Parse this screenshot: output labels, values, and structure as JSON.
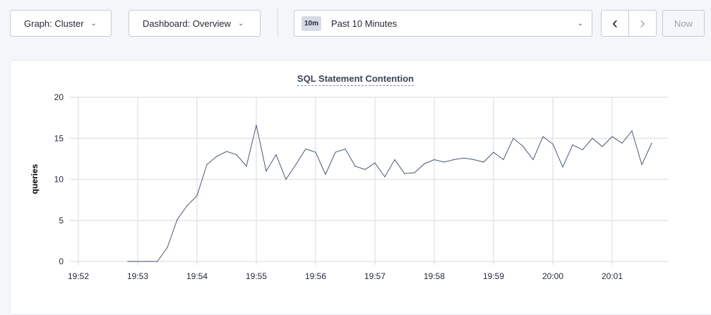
{
  "toolbar": {
    "graph": "Graph: Cluster",
    "dashboard": "Dashboard: Overview",
    "time_badge": "10m",
    "time_range": "Past 10 Minutes",
    "prev": "‹",
    "next": "›",
    "now": "Now"
  },
  "chart_data": {
    "type": "line",
    "title": "SQL Statement Contention",
    "xlabel": "",
    "ylabel": "queries",
    "ylim": [
      0,
      20
    ],
    "yticks": [
      0,
      5,
      10,
      15,
      20
    ],
    "xticks": [
      "19:52",
      "19:53",
      "19:54",
      "19:55",
      "19:56",
      "19:57",
      "19:58",
      "19:59",
      "20:00",
      "20:01"
    ],
    "grid": true,
    "line_color": "#475872",
    "x_start": "19:52:50",
    "x_step_seconds": 10,
    "values": [
      0,
      0,
      0,
      0,
      1.7,
      5.1,
      6.8,
      8.0,
      11.8,
      12.8,
      13.4,
      13.0,
      11.6,
      16.6,
      11.0,
      13.0,
      10.0,
      11.8,
      13.7,
      13.3,
      10.6,
      13.3,
      13.7,
      11.6,
      11.2,
      12.0,
      10.3,
      12.4,
      10.7,
      10.8,
      11.9,
      12.4,
      12.1,
      12.4,
      12.6,
      12.4,
      12.1,
      13.3,
      12.4,
      15.0,
      14.0,
      12.4,
      15.2,
      14.3,
      11.5,
      14.2,
      13.6,
      15.0,
      14.0,
      15.2,
      14.4,
      15.9,
      11.8,
      14.4
    ]
  }
}
